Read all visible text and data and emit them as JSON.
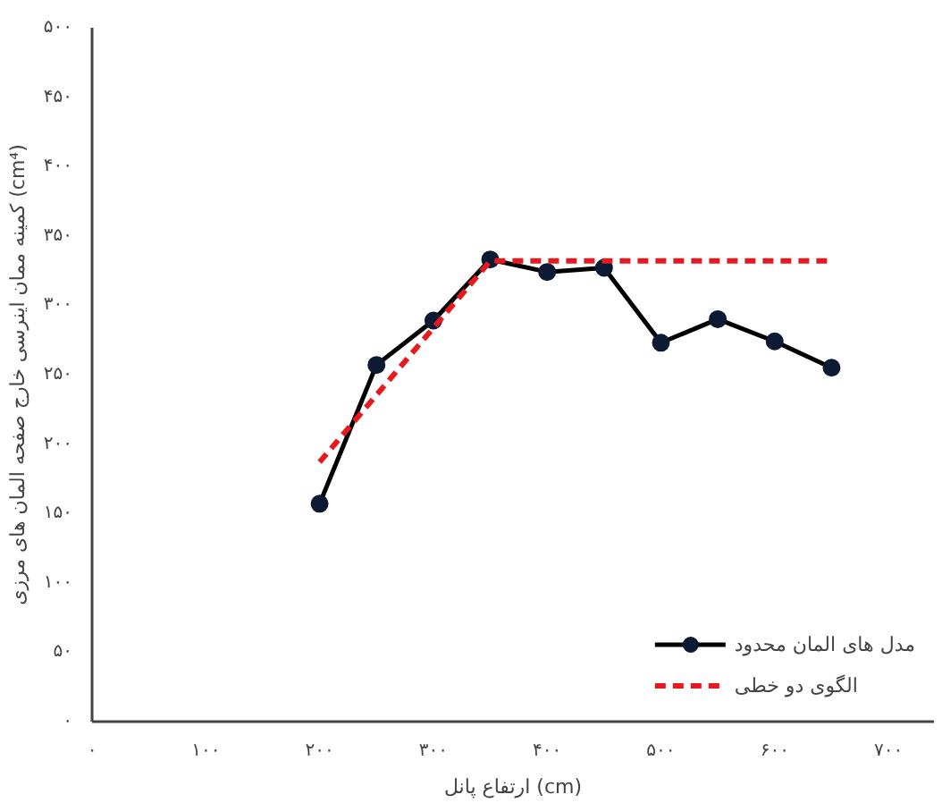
{
  "chart_data": {
    "type": "line",
    "xlabel": "ارتفاع پانل (cm)",
    "ylabel": "کمینه ممان اینرسی خارج صفحه المان های مرزی (cm⁴)",
    "series": [
      {
        "name": "مدل های المان محدود",
        "color": "#000000",
        "marker": "circle",
        "line_style": "solid",
        "x": [
          200,
          250,
          300,
          350,
          400,
          450,
          500,
          550,
          600,
          650
        ],
        "values": [
          157,
          257,
          289,
          333,
          324,
          327,
          273,
          290,
          274,
          255
        ]
      },
      {
        "name": "الگوی دو خطی",
        "color": "#e8191e",
        "marker": "none",
        "line_style": "dashed",
        "x": [
          200,
          350,
          650
        ],
        "values": [
          187,
          332,
          332
        ]
      }
    ],
    "xlim": [
      0,
      740
    ],
    "ylim": [
      0,
      500
    ],
    "xticks": [
      {
        "value": 0,
        "label": "۰"
      },
      {
        "value": 100,
        "label": "۱۰۰"
      },
      {
        "value": 200,
        "label": "۲۰۰"
      },
      {
        "value": 300,
        "label": "۳۰۰"
      },
      {
        "value": 400,
        "label": "۴۰۰"
      },
      {
        "value": 500,
        "label": "۵۰۰"
      },
      {
        "value": 600,
        "label": "۶۰۰"
      },
      {
        "value": 700,
        "label": "۷۰۰"
      }
    ],
    "yticks": [
      {
        "value": 0,
        "label": "۰"
      },
      {
        "value": 50,
        "label": "۵۰"
      },
      {
        "value": 100,
        "label": "۱۰۰"
      },
      {
        "value": 150,
        "label": "۱۵۰"
      },
      {
        "value": 200,
        "label": "۲۰۰"
      },
      {
        "value": 250,
        "label": "۲۵۰"
      },
      {
        "value": 300,
        "label": "۳۰۰"
      },
      {
        "value": 350,
        "label": "۳۵۰"
      },
      {
        "value": 400,
        "label": "۴۰۰"
      },
      {
        "value": 450,
        "label": "۴۵۰"
      },
      {
        "value": 500,
        "label": "۵۰۰"
      }
    ],
    "grid": false,
    "legend": "bottom right"
  }
}
